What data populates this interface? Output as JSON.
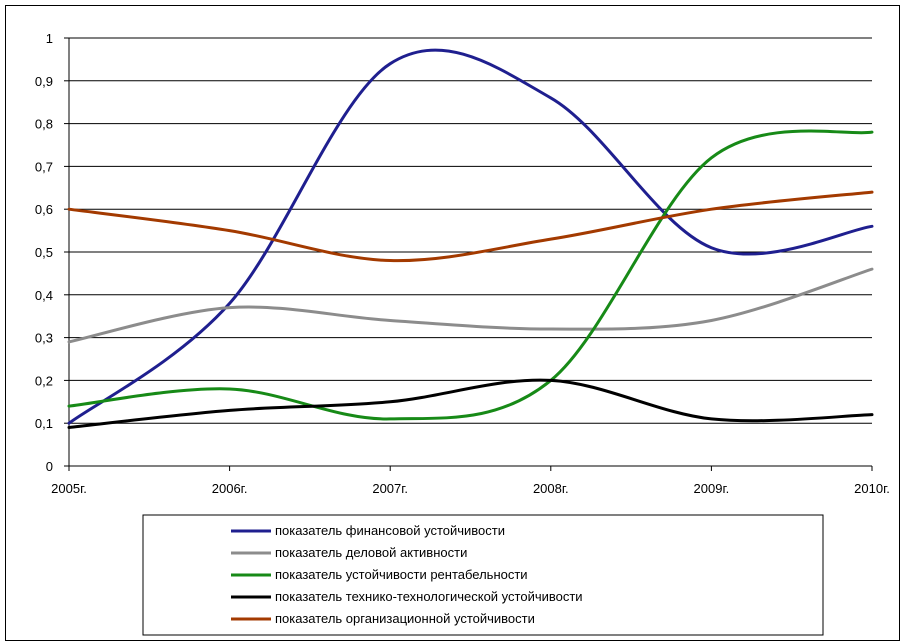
{
  "chart_data": {
    "type": "line",
    "title": "",
    "xlabel": "",
    "ylabel": "",
    "x": [
      "2005г.",
      "2006г.",
      "2007г.",
      "2008г.",
      "2009г.",
      "2010г."
    ],
    "yticks": [
      "0",
      "0,1",
      "0,2",
      "0,3",
      "0,4",
      "0,5",
      "0,6",
      "0,7",
      "0,8",
      "0,9",
      "1"
    ],
    "ylim": [
      0,
      1
    ],
    "grid": true,
    "legend_position": "bottom",
    "series": [
      {
        "name": "показатель финансовой устойчивости",
        "color": "#1f1f8f",
        "values": [
          0.1,
          0.38,
          0.94,
          0.86,
          0.51,
          0.56
        ]
      },
      {
        "name": "показатель деловой активности",
        "color": "#8c8c8c",
        "values": [
          0.29,
          0.37,
          0.34,
          0.32,
          0.34,
          0.46
        ]
      },
      {
        "name": "показатель устойчивости рентабельности",
        "color": "#178a17",
        "values": [
          0.14,
          0.18,
          0.11,
          0.2,
          0.72,
          0.78
        ]
      },
      {
        "name": "показатель технико-технологической устойчивости",
        "color": "#000000",
        "values": [
          0.09,
          0.13,
          0.15,
          0.2,
          0.11,
          0.12
        ]
      },
      {
        "name": "показатель организационной устойчивости",
        "color": "#a33a00",
        "values": [
          0.6,
          0.55,
          0.48,
          0.53,
          0.6,
          0.64
        ]
      }
    ]
  }
}
